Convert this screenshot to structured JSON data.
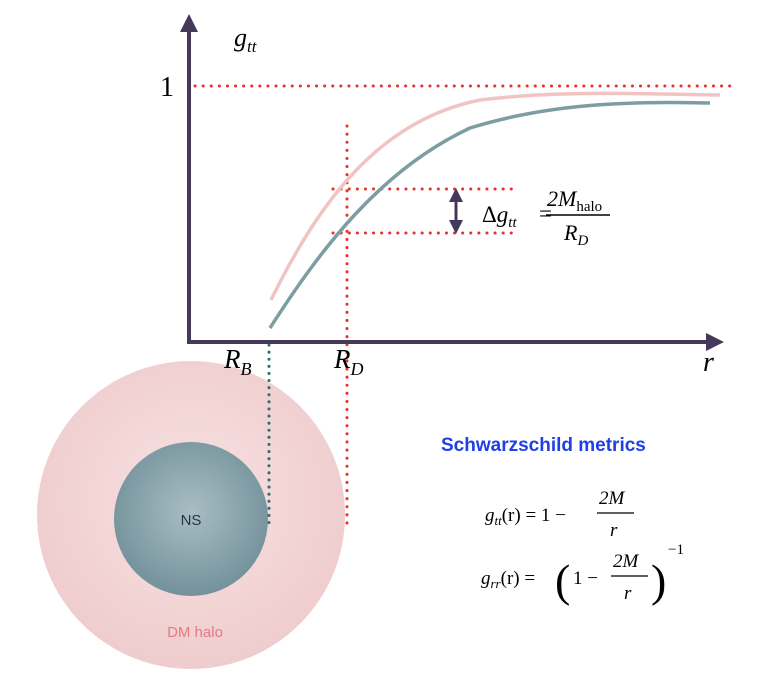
{
  "colors": {
    "axis": "#45385a",
    "grid": "#e8322a",
    "ns_curve": "#7c9ea0",
    "halo_curve": "#f1c4c4",
    "halo_fill": "#f3d3d4",
    "ns_fill": "#85a0a8",
    "ns_line": "#2f6e6a",
    "title": "#1f3fe8",
    "halo_text": "#e27c80",
    "ns_text": "#1b3a48"
  },
  "axes": {
    "y_base": "g",
    "y_sub": "tt",
    "x_label": "r",
    "y_tick_one": "1",
    "rb_base": "R",
    "rb_sub": "B",
    "rd_base": "R",
    "rd_sub": "D"
  },
  "delta": {
    "delta_sym": "Δ",
    "g": "g",
    "g_sub": "tt",
    "equals": "=",
    "num_base": "2M",
    "num_sub": "halo",
    "den_base": "R",
    "den_sub": "D"
  },
  "labels": {
    "ns": "NS",
    "dm_halo": "DM halo"
  },
  "metrics": {
    "title": "Schwarzschild metrics",
    "eq1": {
      "lhs_base": "g",
      "lhs_sub": "tt",
      "lhs_arg": "(r) = 1 −",
      "num": "2M",
      "den": "r"
    },
    "eq2": {
      "lhs_base": "g",
      "lhs_sub": "rr",
      "lhs_arg": "(r) =",
      "open_paren": "(",
      "one_minus": "1 −",
      "num": "2M",
      "den": "r",
      "close_paren": ")",
      "exponent": "−1"
    }
  }
}
